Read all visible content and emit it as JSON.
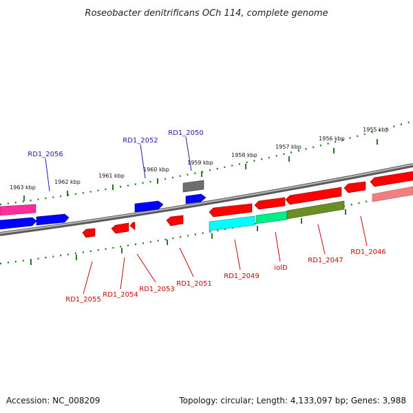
{
  "title": "Roseobacter denitrificans OCh 114, complete genome",
  "footer": {
    "accession": "Accession: NC_008209",
    "summary": "Topology: circular; Length: 4,133,097 bp; Genes: 3,988"
  },
  "scale_labels": [
    "1955 kbp",
    "1956 kbp",
    "1957 kbp",
    "1958 kbp",
    "1959 kbp",
    "1960 kbp",
    "1961 kbp",
    "1962 kbp",
    "1963 kbp"
  ],
  "gene_labels_top": [
    "RD1_2056",
    "RD1_2052",
    "RD1_2050"
  ],
  "gene_labels_bottom": [
    "RD1_2055",
    "RD1_2054",
    "RD1_2053",
    "RD1_2051",
    "RD1_2049",
    "iolD",
    "RD1_2047",
    "RD1_2046"
  ],
  "colors": {
    "forward_label": "#1a1aa6",
    "reverse_label": "#cc0000",
    "backbone": "#888888",
    "tick": "#1e7a1e",
    "red": "#ff0000",
    "blue": "#0000ff",
    "magenta": "#ff2d9b",
    "grey": "#6e6e6e",
    "cyan": "#00ffff",
    "spring_green": "#00ee88",
    "olive": "#6b8e23",
    "pink": "#f08080"
  }
}
